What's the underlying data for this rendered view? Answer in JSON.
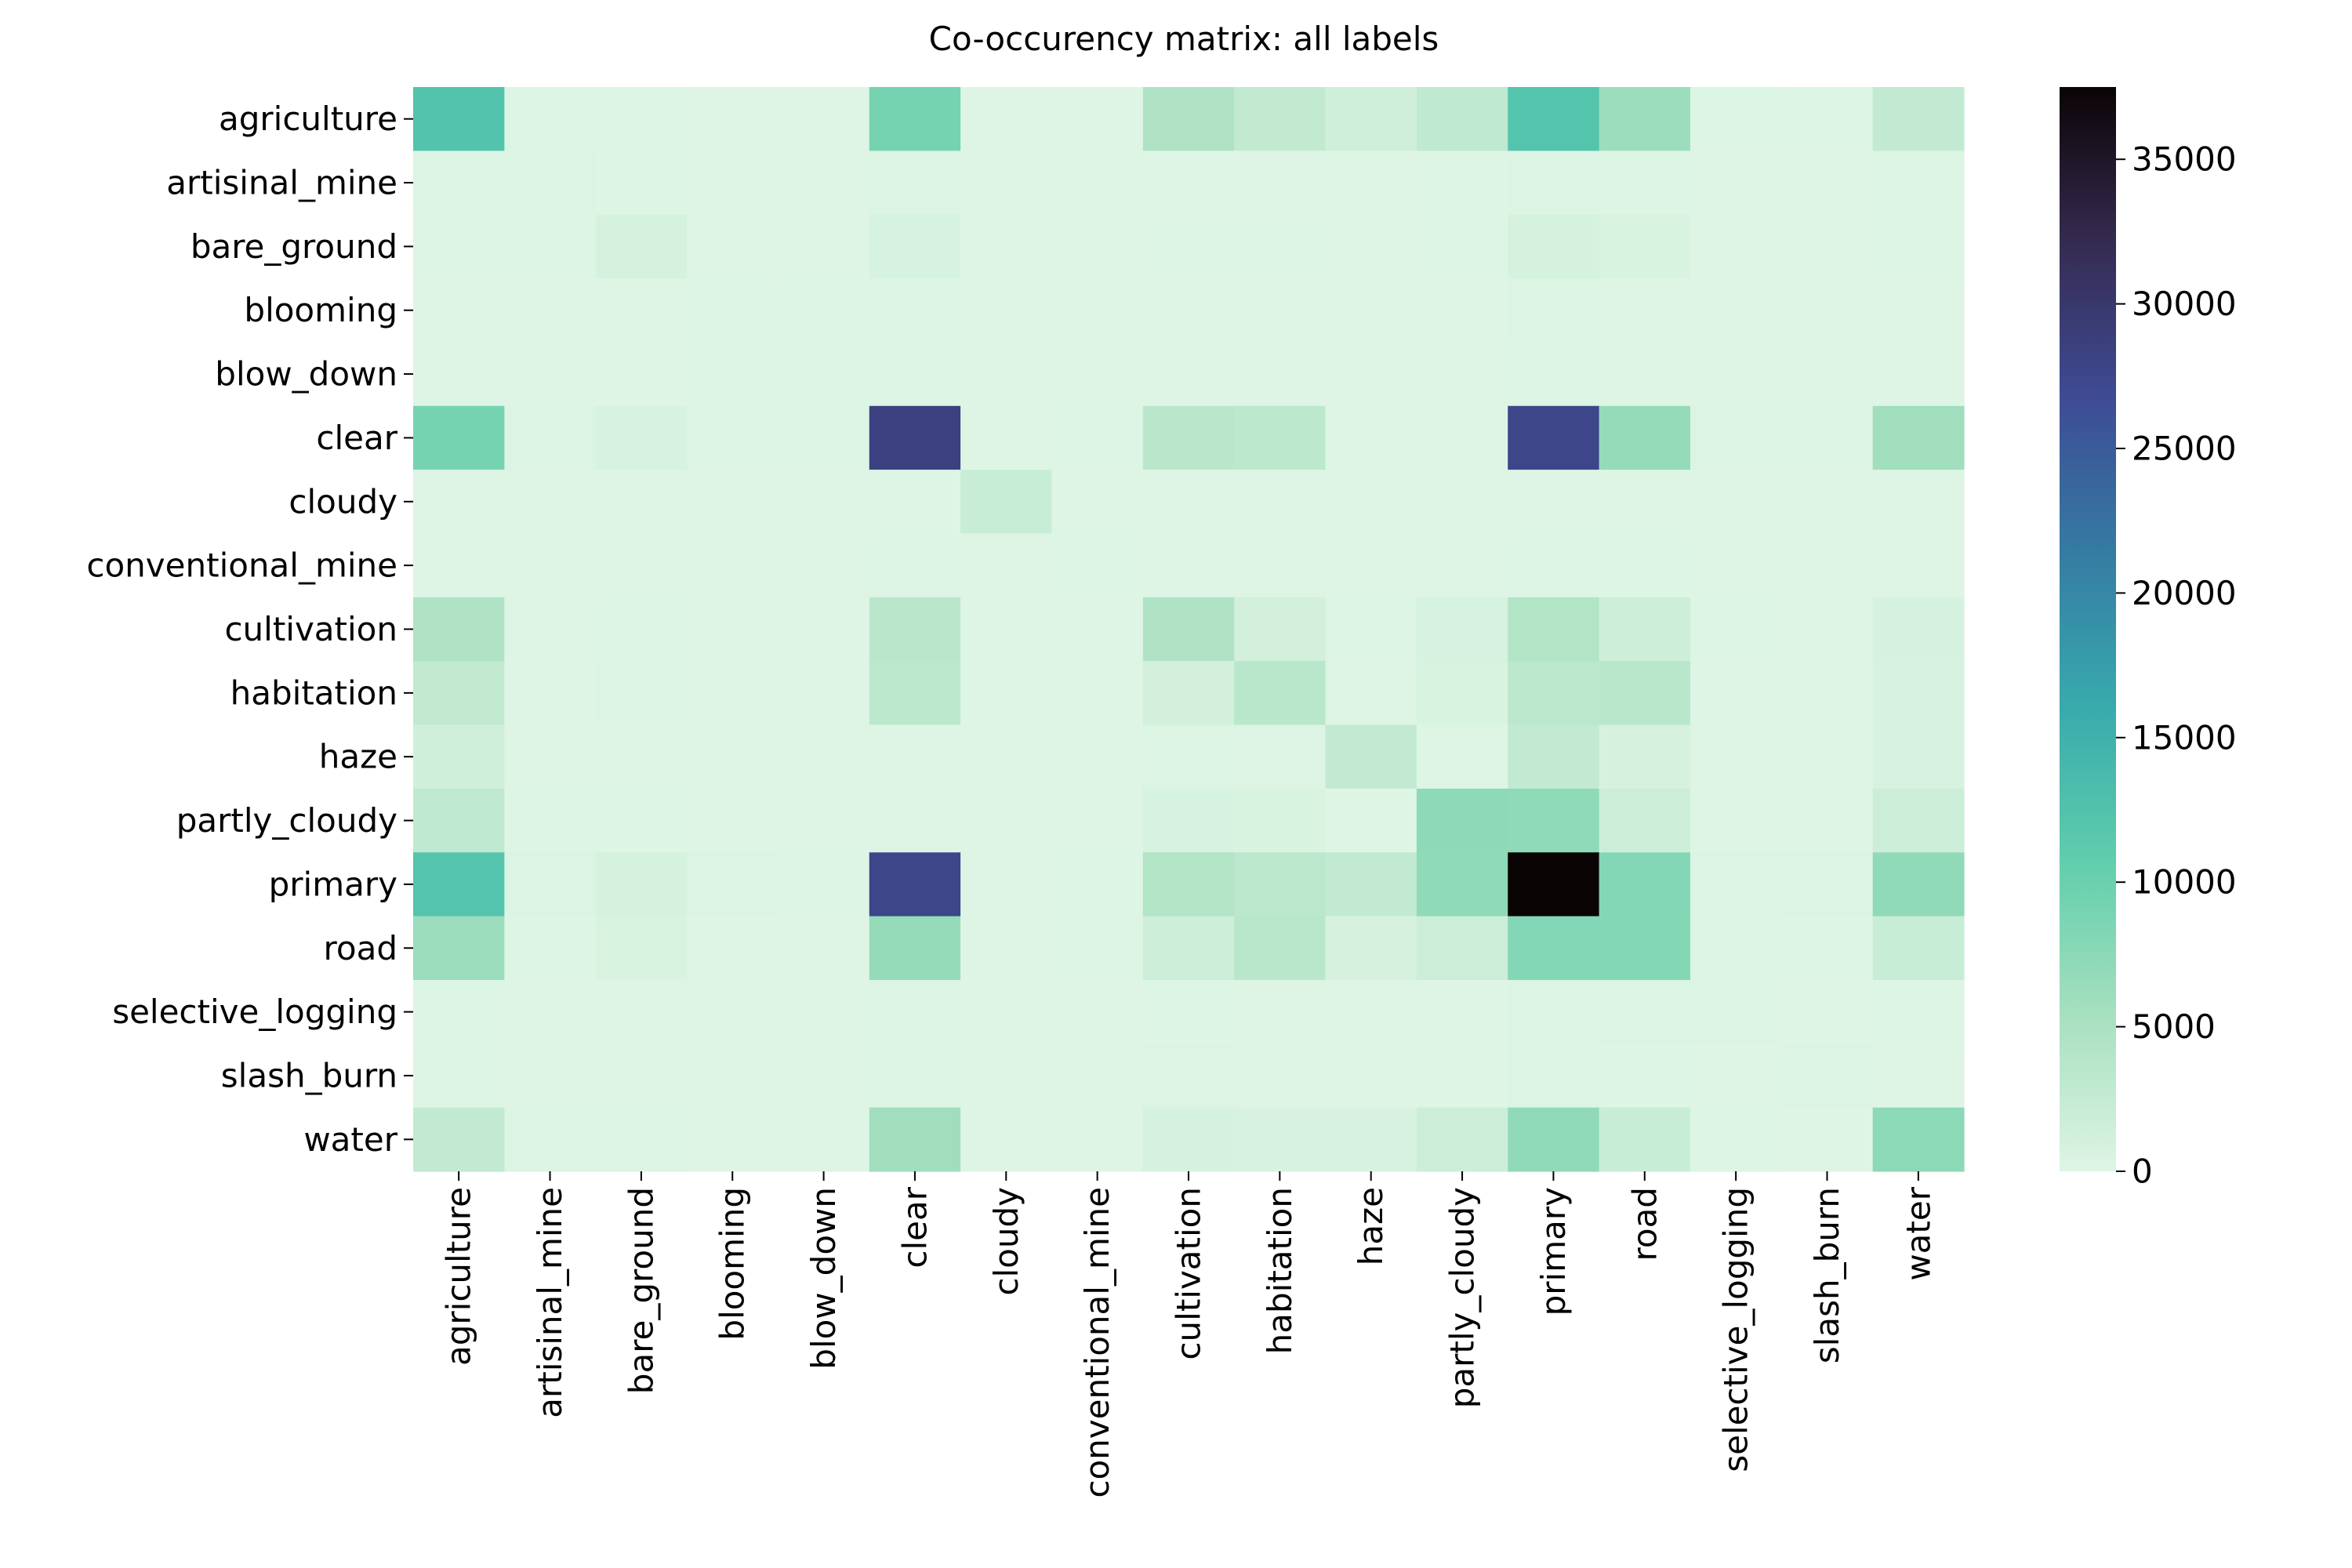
{
  "chart_data": {
    "type": "heatmap",
    "title": "Co-occurency matrix: all labels",
    "xlabel": "",
    "ylabel": "",
    "labels": [
      "agriculture",
      "artisinal_mine",
      "bare_ground",
      "blooming",
      "blow_down",
      "clear",
      "cloudy",
      "conventional_mine",
      "cultivation",
      "habitation",
      "haze",
      "partly_cloudy",
      "primary",
      "road",
      "selective_logging",
      "slash_burn",
      "water"
    ],
    "values": [
      [
        12300,
        340,
        230,
        30,
        20,
        9150,
        0,
        20,
        4480,
        2800,
        1500,
        3000,
        12200,
        6300,
        50,
        120,
        2700
      ],
      [
        340,
        340,
        50,
        0,
        0,
        300,
        0,
        0,
        20,
        30,
        10,
        60,
        320,
        110,
        0,
        0,
        300
      ],
      [
        230,
        50,
        860,
        10,
        0,
        750,
        0,
        10,
        90,
        160,
        40,
        70,
        850,
        500,
        20,
        20,
        200
      ],
      [
        30,
        0,
        10,
        330,
        60,
        300,
        0,
        0,
        35,
        5,
        5,
        20,
        330,
        10,
        10,
        2,
        15
      ],
      [
        20,
        0,
        0,
        60,
        100,
        90,
        0,
        0,
        10,
        0,
        0,
        20,
        100,
        0,
        0,
        0,
        3
      ],
      [
        9150,
        300,
        750,
        300,
        90,
        28400,
        0,
        70,
        3550,
        3350,
        0,
        0,
        27700,
        6700,
        300,
        150,
        5900
      ],
      [
        0,
        0,
        0,
        0,
        0,
        0,
        2100,
        0,
        0,
        0,
        0,
        0,
        0,
        0,
        0,
        0,
        0
      ],
      [
        20,
        0,
        10,
        0,
        0,
        70,
        0,
        100,
        0,
        0,
        0,
        0,
        100,
        100,
        0,
        0,
        25
      ],
      [
        4480,
        20,
        90,
        35,
        10,
        3550,
        0,
        0,
        4500,
        1200,
        200,
        750,
        4300,
        1700,
        50,
        130,
        900
      ],
      [
        2800,
        30,
        160,
        5,
        0,
        3350,
        0,
        0,
        1200,
        3650,
        130,
        500,
        3450,
        3600,
        30,
        15,
        700
      ],
      [
        1500,
        10,
        40,
        5,
        0,
        0,
        0,
        0,
        200,
        130,
        2700,
        0,
        2700,
        800,
        5,
        5,
        650
      ],
      [
        3000,
        60,
        70,
        20,
        20,
        0,
        0,
        0,
        750,
        500,
        0,
        7250,
        7200,
        1800,
        10,
        10,
        1800
      ],
      [
        12200,
        320,
        850,
        330,
        100,
        27700,
        0,
        100,
        4300,
        3450,
        2700,
        7200,
        37500,
        8000,
        300,
        150,
        7050
      ],
      [
        6300,
        110,
        500,
        10,
        0,
        6700,
        0,
        100,
        1700,
        3600,
        800,
        1800,
        8000,
        8100,
        150,
        120,
        2100
      ],
      [
        50,
        0,
        20,
        10,
        0,
        300,
        0,
        0,
        50,
        30,
        5,
        10,
        300,
        150,
        340,
        10,
        50
      ],
      [
        120,
        0,
        20,
        2,
        0,
        150,
        0,
        0,
        130,
        15,
        5,
        10,
        150,
        120,
        10,
        200,
        20
      ],
      [
        2700,
        300,
        200,
        15,
        3,
        5900,
        0,
        25,
        900,
        700,
        650,
        1800,
        7050,
        2100,
        50,
        20,
        7400
      ]
    ],
    "colorbar": {
      "min": 0,
      "max": 37500,
      "ticks": [
        0,
        5000,
        10000,
        15000,
        20000,
        25000,
        30000,
        35000
      ],
      "colormap": "mako_r",
      "color_stops": [
        "#def5e5",
        "#a7e0bf",
        "#60ceac",
        "#38aaac",
        "#357ba3",
        "#3e4b94",
        "#352b51",
        "#0b0405"
      ]
    },
    "grid": false,
    "legend": "colorbar-right"
  }
}
